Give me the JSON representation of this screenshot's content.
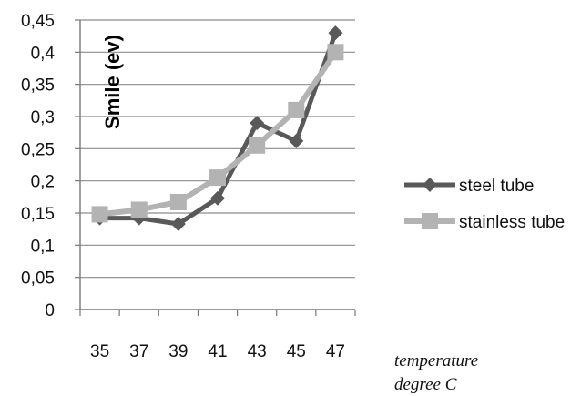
{
  "chart_data": {
    "type": "line",
    "title": "",
    "xlabel": [
      "temperature",
      "degree C"
    ],
    "ylabel": "Smile (ev)",
    "categories": [
      "35",
      "37",
      "39",
      "41",
      "43",
      "45",
      "47"
    ],
    "ylim": [
      0,
      0.45
    ],
    "yticks": [
      "0",
      "0,05",
      "0,1",
      "0,15",
      "0,2",
      "0,25",
      "0,3",
      "0,35",
      "0,4",
      "0,45"
    ],
    "grid": "horizontal",
    "legend_position": "right",
    "series": [
      {
        "name": "steel tube",
        "marker": "diamond",
        "color": "#595959",
        "values": [
          0.142,
          0.142,
          0.133,
          0.173,
          0.29,
          0.262,
          0.43
        ]
      },
      {
        "name": "stainless tube",
        "marker": "square",
        "color": "#b3b3b3",
        "values": [
          0.148,
          0.155,
          0.167,
          0.205,
          0.255,
          0.31,
          0.4
        ]
      }
    ]
  }
}
